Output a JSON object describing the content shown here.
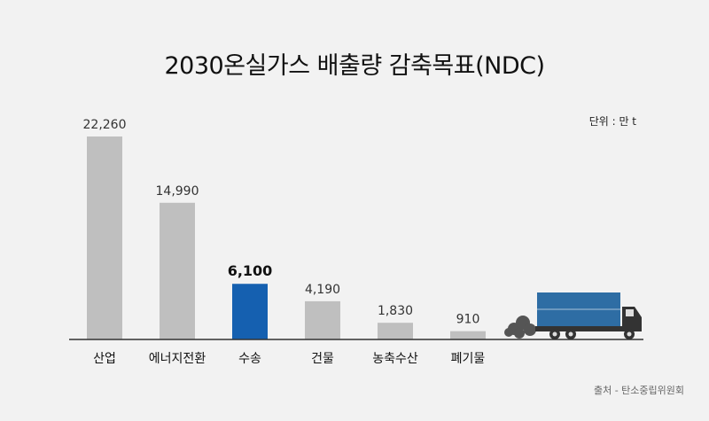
{
  "chart_data": {
    "type": "bar",
    "title": "2030온실가스 배출량 감축목표(NDC)",
    "unit": "단위 : 만 t",
    "source": "출처 - 탄소중립위원회",
    "categories": [
      "산업",
      "에너지전환",
      "수송",
      "건물",
      "농축수산",
      "폐기물"
    ],
    "values": [
      22260,
      14990,
      6100,
      4190,
      1830,
      910
    ],
    "value_labels": [
      "22,260",
      "14,990",
      "6,100",
      "4,190",
      "1,830",
      "910"
    ],
    "highlight_index": 2,
    "ylim": [
      0,
      22260
    ],
    "grid": false,
    "legend": "none",
    "colors": {
      "bar": "#bfbfbf",
      "highlight": "#1560b0",
      "axis": "#333333",
      "truck_cargo": "#2e6da4",
      "truck_cab": "#333333",
      "smoke": "#555555"
    }
  }
}
